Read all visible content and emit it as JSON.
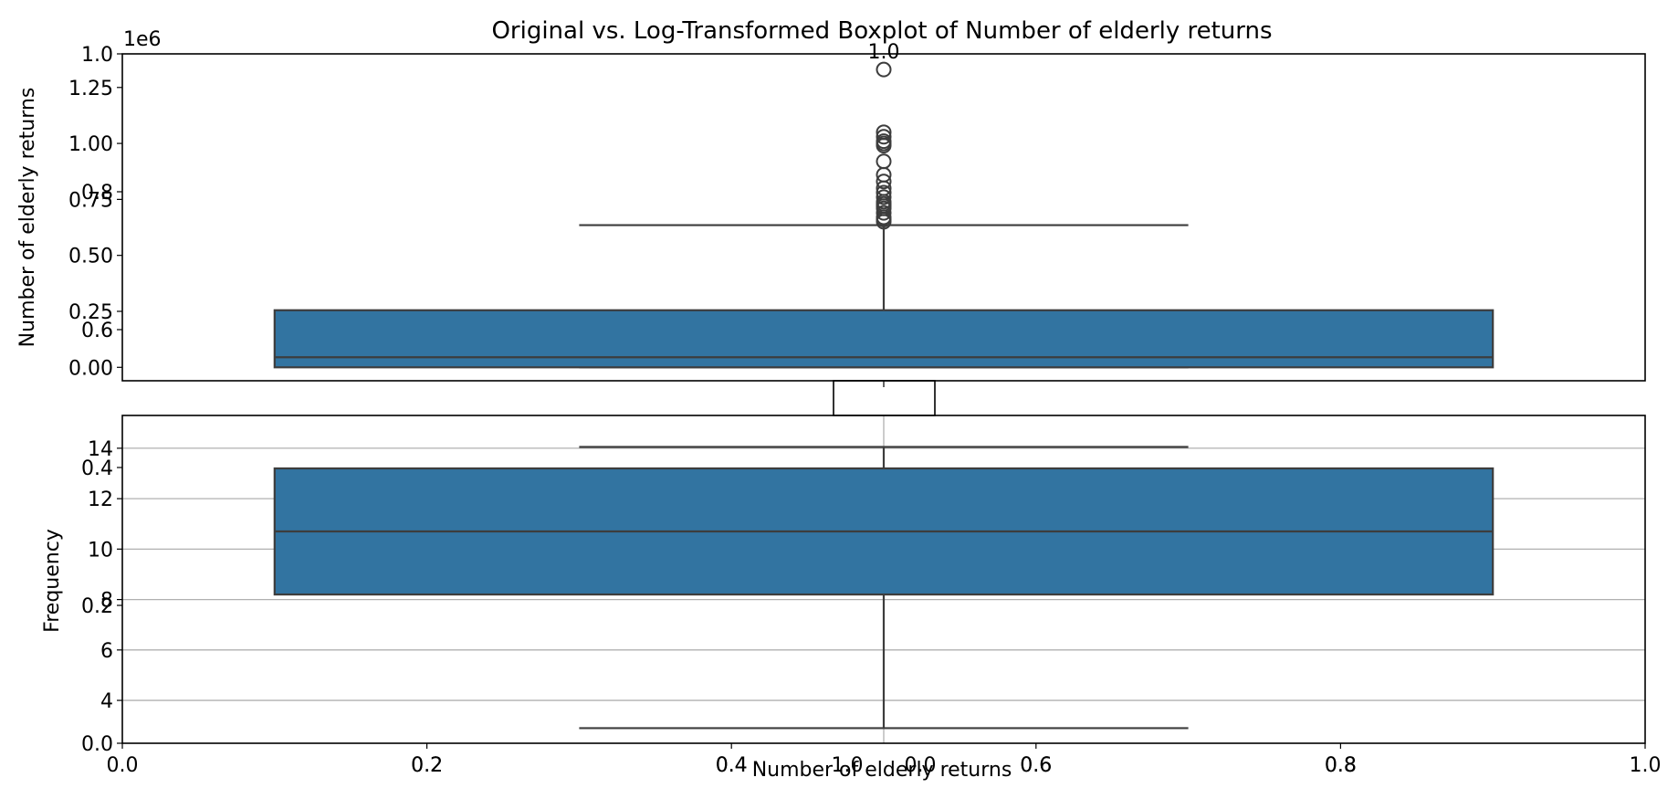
{
  "title": "Original vs. Log-Transformed Boxplot of Number of elderly returns",
  "colors": {
    "box": "#3274a1",
    "line": "#3d3d3d",
    "grid": "#b0b0b0",
    "axis": "#000000"
  },
  "chart_data": [
    {
      "type": "box",
      "ylabel": "Number of elderly returns",
      "offset_text": "1e6",
      "ylim": [
        -0.06,
        1.4
      ],
      "yticks": [
        "0.00",
        "0.25",
        "0.50",
        "0.75",
        "1.00",
        "1.25"
      ],
      "grid": false,
      "box": {
        "whislo": 0.0,
        "q1": 0.0,
        "median": 0.045,
        "q3": 0.255,
        "whishi": 0.635
      },
      "outliers": [
        0.65,
        0.66,
        0.67,
        0.69,
        0.71,
        0.72,
        0.73,
        0.74,
        0.76,
        0.78,
        0.8,
        0.83,
        0.86,
        0.92,
        0.99,
        1.0,
        1.01,
        1.03,
        1.05,
        1.33
      ]
    },
    {
      "type": "box",
      "ylabel": "Frequency",
      "ylim": [
        2.3,
        15.3
      ],
      "yticks": [
        "4",
        "6",
        "8",
        "10",
        "12",
        "14"
      ],
      "grid": true,
      "box": {
        "whislo": 2.9,
        "q1": 8.2,
        "median": 10.7,
        "q3": 13.2,
        "whishi": 14.05
      },
      "outliers": []
    },
    {
      "type": "empty",
      "xlabel": "Number of elderly returns",
      "yticks": [
        "0.0",
        "0.2",
        "0.4",
        "0.6",
        "0.8",
        "1.0"
      ],
      "xticks_left": [
        "0.0",
        "0.2",
        "0.4",
        "0.6",
        "0.8",
        "1.0"
      ],
      "xticks_right": [
        "0.0",
        "0.2",
        "0.4",
        "0.6",
        "0.8",
        "1.0"
      ],
      "xticks_center": [
        "0.0",
        "0.2",
        "0.4",
        "0.6",
        "0.8",
        "1.0"
      ]
    }
  ]
}
